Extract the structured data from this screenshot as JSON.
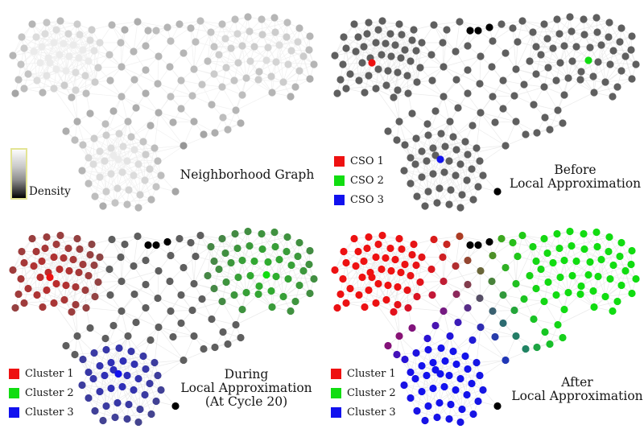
{
  "panels": {
    "p1": {
      "name": "neighborhood-graph",
      "title": "Neighborhood Graph",
      "colorbar_label": "Density"
    },
    "p2": {
      "name": "before-local-approximation",
      "title_line1": "Before",
      "title_line2": "Local Approximation",
      "legend": [
        {
          "label": "CSO 1",
          "color": "#ee1111"
        },
        {
          "label": "CSO 2",
          "color": "#11dd11"
        },
        {
          "label": "CSO 3",
          "color": "#1111ee"
        }
      ]
    },
    "p3": {
      "name": "during-local-approximation",
      "title_line1": "During",
      "title_line2": "Local Approximation",
      "title_line3": "(At Cycle 20)",
      "legend": [
        {
          "label": "Cluster 1",
          "color": "#ee1111"
        },
        {
          "label": "Cluster 2",
          "color": "#11dd11"
        },
        {
          "label": "Cluster 3",
          "color": "#1111ee"
        }
      ]
    },
    "p4": {
      "name": "after-local-approximation",
      "title_line1": "After",
      "title_line2": "Local Approximation",
      "legend": [
        {
          "label": "Cluster 1",
          "color": "#ee1111"
        },
        {
          "label": "Cluster 2",
          "color": "#11dd11"
        },
        {
          "label": "Cluster 3",
          "color": "#1111ee"
        }
      ]
    }
  },
  "colors": {
    "cluster1": "#ee1111",
    "cluster2": "#11dd11",
    "cluster3": "#1111ee",
    "node_gray": "#5f5f5f",
    "black": "#000000",
    "edge": "#d9d9d9",
    "edge_light": "#e4e4e4",
    "density_low": "#969696",
    "density_high": "#ebebeb"
  },
  "graph": {
    "node_radius": 4.6,
    "edge_radius": 28,
    "long_edge_radius": 52,
    "nodes": [
      [
        23,
        99,
        "r"
      ],
      [
        16,
        69,
        "r"
      ],
      [
        27,
        46,
        "r"
      ],
      [
        40,
        30,
        "r"
      ],
      [
        58,
        28,
        "r"
      ],
      [
        75,
        26,
        "r"
      ],
      [
        96,
        30,
        "r"
      ],
      [
        114,
        37,
        "r"
      ],
      [
        30,
        60,
        "r"
      ],
      [
        45,
        46,
        "r"
      ],
      [
        56,
        42,
        "r"
      ],
      [
        70,
        37,
        "r"
      ],
      [
        85,
        42,
        "r"
      ],
      [
        99,
        43,
        "r"
      ],
      [
        112,
        50,
        "r"
      ],
      [
        124,
        53,
        "r"
      ],
      [
        26,
        80,
        "r"
      ],
      [
        42,
        64,
        "r"
      ],
      [
        52,
        58,
        "r"
      ],
      [
        67,
        53,
        "r"
      ],
      [
        79,
        54,
        "r"
      ],
      [
        91,
        56,
        "r"
      ],
      [
        103,
        62,
        "r"
      ],
      [
        117,
        63,
        "r"
      ],
      [
        35,
        92,
        "r"
      ],
      [
        50,
        78,
        "r"
      ],
      [
        60,
        72,
        "r"
      ],
      [
        74,
        68,
        "r"
      ],
      [
        86,
        70,
        "r"
      ],
      [
        98,
        72,
        "r"
      ],
      [
        110,
        76,
        "r"
      ],
      [
        122,
        84,
        "r"
      ],
      [
        30,
        110,
        "r"
      ],
      [
        46,
        100,
        "r"
      ],
      [
        58,
        94,
        "r"
      ],
      [
        70,
        86,
        "r"
      ],
      [
        82,
        88,
        "r"
      ],
      [
        94,
        90,
        "r"
      ],
      [
        106,
        94,
        "r"
      ],
      [
        118,
        102,
        "r"
      ],
      [
        53,
        115,
        "r"
      ],
      [
        67,
        110,
        "r"
      ],
      [
        80,
        106,
        "r"
      ],
      [
        94,
        112,
        "r"
      ],
      [
        107,
        116,
        "r"
      ],
      [
        89,
        121,
        "r"
      ],
      [
        19,
        116,
        "r"
      ],
      [
        62,
        78,
        "R"
      ],
      [
        262,
        40,
        "g"
      ],
      [
        276,
        30,
        "g"
      ],
      [
        292,
        24,
        "g"
      ],
      [
        308,
        21,
        "g"
      ],
      [
        325,
        24,
        "g"
      ],
      [
        341,
        22,
        "g"
      ],
      [
        357,
        28,
        "g"
      ],
      [
        372,
        35,
        "g"
      ],
      [
        385,
        45,
        "g"
      ],
      [
        266,
        58,
        "g"
      ],
      [
        280,
        48,
        "g"
      ],
      [
        295,
        42,
        "g"
      ],
      [
        310,
        39,
        "g"
      ],
      [
        326,
        43,
        "g"
      ],
      [
        342,
        40,
        "g"
      ],
      [
        356,
        46,
        "g"
      ],
      [
        370,
        52,
        "g"
      ],
      [
        384,
        62,
        "g"
      ],
      [
        258,
        76,
        "g"
      ],
      [
        272,
        68,
        "g"
      ],
      [
        287,
        60,
        "g"
      ],
      [
        301,
        57,
        "g"
      ],
      [
        316,
        58,
        "g"
      ],
      [
        333,
        59,
        "g"
      ],
      [
        347,
        56,
        "g"
      ],
      [
        362,
        63,
        "g"
      ],
      [
        377,
        70,
        "g"
      ],
      [
        390,
        80,
        "g"
      ],
      [
        266,
        92,
        "g"
      ],
      [
        281,
        84,
        "g"
      ],
      [
        296,
        78,
        "g"
      ],
      [
        311,
        76,
        "g"
      ],
      [
        322,
        89,
        "g"
      ],
      [
        343,
        77,
        "g"
      ],
      [
        358,
        80,
        "g"
      ],
      [
        372,
        88,
        "g"
      ],
      [
        385,
        98,
        "g"
      ],
      [
        276,
        108,
        "g"
      ],
      [
        291,
        100,
        "g"
      ],
      [
        306,
        97,
        "g"
      ],
      [
        321,
        99,
        "g"
      ],
      [
        337,
        95,
        "g"
      ],
      [
        352,
        102,
        "g"
      ],
      [
        367,
        108,
        "g"
      ],
      [
        301,
        118,
        "g"
      ],
      [
        338,
        115,
        "g"
      ],
      [
        361,
        120,
        "g"
      ],
      [
        331,
        75,
        "G"
      ],
      [
        103,
        180,
        "b"
      ],
      [
        117,
        172,
        "b"
      ],
      [
        132,
        168,
        "b"
      ],
      [
        148,
        166,
        "b"
      ],
      [
        163,
        170,
        "b"
      ],
      [
        178,
        176,
        "b"
      ],
      [
        192,
        184,
        "b"
      ],
      [
        110,
        196,
        "b"
      ],
      [
        124,
        188,
        "b"
      ],
      [
        138,
        184,
        "b"
      ],
      [
        153,
        182,
        "b"
      ],
      [
        167,
        186,
        "b"
      ],
      [
        181,
        192,
        "b"
      ],
      [
        196,
        200,
        "b"
      ],
      [
        102,
        212,
        "b"
      ],
      [
        116,
        204,
        "b"
      ],
      [
        130,
        200,
        "b"
      ],
      [
        141,
        193,
        "b"
      ],
      [
        158,
        200,
        "b"
      ],
      [
        172,
        204,
        "b"
      ],
      [
        186,
        210,
        "b"
      ],
      [
        200,
        218,
        "b"
      ],
      [
        110,
        228,
        "b"
      ],
      [
        124,
        220,
        "b"
      ],
      [
        138,
        216,
        "b"
      ],
      [
        152,
        214,
        "b"
      ],
      [
        166,
        218,
        "b"
      ],
      [
        180,
        224,
        "b"
      ],
      [
        194,
        232,
        "b"
      ],
      [
        118,
        244,
        "b"
      ],
      [
        132,
        238,
        "b"
      ],
      [
        146,
        234,
        "b"
      ],
      [
        160,
        236,
        "b"
      ],
      [
        174,
        242,
        "b"
      ],
      [
        188,
        248,
        "b"
      ],
      [
        128,
        256,
        "b"
      ],
      [
        143,
        252,
        "b"
      ],
      [
        158,
        254,
        "b"
      ],
      [
        172,
        258,
        "b"
      ],
      [
        147,
        198,
        "B"
      ],
      [
        139,
        31,
        "m"
      ],
      [
        155,
        37,
        "m"
      ],
      [
        171,
        27,
        "m"
      ],
      [
        223,
        30,
        "m"
      ],
      [
        237,
        35,
        "m"
      ],
      [
        249,
        26,
        "m"
      ],
      [
        184,
        38,
        "k"
      ],
      [
        194,
        38,
        "k"
      ],
      [
        208,
        34,
        "k"
      ],
      [
        150,
        53,
        "m"
      ],
      [
        181,
        57,
        "m"
      ],
      [
        212,
        51,
        "m"
      ],
      [
        243,
        52,
        "m"
      ],
      [
        136,
        68,
        "m"
      ],
      [
        166,
        64,
        "m"
      ],
      [
        197,
        70,
        "m"
      ],
      [
        228,
        66,
        "m"
      ],
      [
        151,
        83,
        "m"
      ],
      [
        181,
        87,
        "m"
      ],
      [
        211,
        83,
        "m"
      ],
      [
        241,
        86,
        "m"
      ],
      [
        137,
        100,
        "m"
      ],
      [
        167,
        99,
        "m"
      ],
      [
        196,
        104,
        "m"
      ],
      [
        225,
        100,
        "m"
      ],
      [
        251,
        105,
        "m"
      ],
      [
        151,
        120,
        "m"
      ],
      [
        181,
        116,
        "m"
      ],
      [
        212,
        120,
        "m"
      ],
      [
        239,
        119,
        "m"
      ],
      [
        141,
        138,
        "m"
      ],
      [
        169,
        134,
        "m"
      ],
      [
        197,
        140,
        "m"
      ],
      [
        225,
        135,
        "m"
      ],
      [
        131,
        154,
        "m"
      ],
      [
        159,
        151,
        "m"
      ],
      [
        187,
        156,
        "m"
      ],
      [
        215,
        152,
        "m"
      ],
      [
        241,
        151,
        "m"
      ],
      [
        263,
        130,
        "m"
      ],
      [
        277,
        146,
        "m"
      ],
      [
        293,
        137,
        "m"
      ],
      [
        299,
        153,
        "m"
      ],
      [
        283,
        161,
        "m"
      ],
      [
        267,
        165,
        "m"
      ],
      [
        253,
        167,
        "m"
      ],
      [
        112,
        141,
        "m"
      ],
      [
        96,
        151,
        "m"
      ],
      [
        82,
        163,
        "m"
      ],
      [
        93,
        174,
        "m"
      ],
      [
        228,
        181,
        "m"
      ],
      [
        218,
        238,
        "k"
      ]
    ]
  }
}
